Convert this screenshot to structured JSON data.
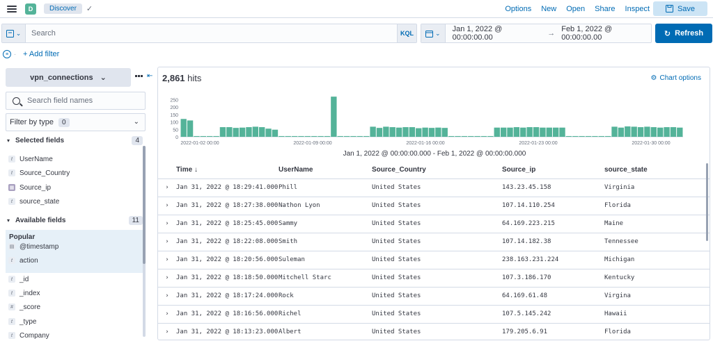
{
  "header": {
    "space_initial": "D",
    "breadcrumb": "Discover",
    "links": [
      "Options",
      "New",
      "Open",
      "Share",
      "Inspect"
    ],
    "save_label": "Save"
  },
  "query": {
    "search_placeholder": "Search",
    "language": "KQL",
    "date_start": "Jan 1, 2022 @ 00:00:00.00",
    "date_end": "Feb 1, 2022 @ 00:00:00.00",
    "refresh_label": "Refresh",
    "add_filter": "+ Add filter"
  },
  "sidebar": {
    "index_pattern": "vpn_connections",
    "field_search_placeholder": "Search field names",
    "filter_by_type": "Filter by type",
    "filter_count": "0",
    "selected_title": "Selected fields",
    "selected_count": "4",
    "selected_fields": [
      {
        "name": "UserName",
        "type": "t"
      },
      {
        "name": "Source_Country",
        "type": "t"
      },
      {
        "name": "Source_ip",
        "type": "ip"
      },
      {
        "name": "source_state",
        "type": "t"
      }
    ],
    "available_title": "Available fields",
    "available_count": "11",
    "popular_title": "Popular",
    "popular_fields": [
      {
        "name": "@timestamp",
        "type": "date"
      },
      {
        "name": "action",
        "type": "t"
      }
    ],
    "other_fields": [
      {
        "name": "_id",
        "type": "t"
      },
      {
        "name": "_index",
        "type": "t"
      },
      {
        "name": "_score",
        "type": "#"
      },
      {
        "name": "_type",
        "type": "t"
      },
      {
        "name": "Company",
        "type": "t"
      }
    ]
  },
  "main": {
    "hits_count": "2,861",
    "hits_label": "hits",
    "chart_options": "Chart options",
    "range_caption": "Jan 1, 2022 @ 00:00:00.000 - Feb 1, 2022 @ 00:00:00.000",
    "columns": [
      "Time",
      "UserName",
      "Source_Country",
      "Source_ip",
      "source_state"
    ],
    "rows": [
      [
        "Jan 31, 2022 @ 18:29:41.000",
        "Phill",
        "United States",
        "143.23.45.158",
        "Virginia"
      ],
      [
        "Jan 31, 2022 @ 18:27:38.000",
        "Nathon Lyon",
        "United States",
        "107.14.110.254",
        "Florida"
      ],
      [
        "Jan 31, 2022 @ 18:25:45.000",
        "Sammy",
        "United States",
        "64.169.223.215",
        "Maine"
      ],
      [
        "Jan 31, 2022 @ 18:22:08.000",
        "Smith",
        "United States",
        "107.14.182.38",
        "Tennessee"
      ],
      [
        "Jan 31, 2022 @ 18:20:56.000",
        "Suleman",
        "United States",
        "238.163.231.224",
        "Michigan"
      ],
      [
        "Jan 31, 2022 @ 18:18:50.000",
        "Mitchell Starc",
        "United States",
        "107.3.186.170",
        "Kentucky"
      ],
      [
        "Jan 31, 2022 @ 18:17:24.000",
        "Rock",
        "United States",
        "64.169.61.48",
        "Virgina"
      ],
      [
        "Jan 31, 2022 @ 18:16:56.000",
        "Richel",
        "United States",
        "107.5.145.242",
        "Hawaii"
      ],
      [
        "Jan 31, 2022 @ 18:13:23.000",
        "Albert",
        "United States",
        "179.205.6.91",
        "Florida"
      ]
    ]
  },
  "chart_data": {
    "type": "bar",
    "y_ticks": [
      0,
      50,
      100,
      150,
      200,
      250
    ],
    "ylim": [
      0,
      280
    ],
    "x_tick_labels": [
      "2022-01-02 00:00",
      "2022-01-09 00:00",
      "2022-01-16 00:00",
      "2022-01-23 00:00",
      "2022-01-30 00:00"
    ],
    "bar_color": "#54b399",
    "values": [
      120,
      110,
      5,
      5,
      5,
      5,
      65,
      65,
      60,
      62,
      65,
      68,
      65,
      55,
      48,
      5,
      5,
      5,
      5,
      5,
      5,
      5,
      5,
      270,
      5,
      5,
      5,
      5,
      5,
      68,
      60,
      68,
      65,
      62,
      65,
      65,
      58,
      62,
      60,
      62,
      60,
      5,
      5,
      5,
      5,
      5,
      5,
      5,
      62,
      62,
      62,
      65,
      62,
      65,
      65,
      62,
      62,
      62,
      62,
      5,
      5,
      5,
      5,
      5,
      5,
      5,
      68,
      62,
      70,
      68,
      65,
      68,
      65,
      62,
      65,
      65,
      62
    ]
  }
}
